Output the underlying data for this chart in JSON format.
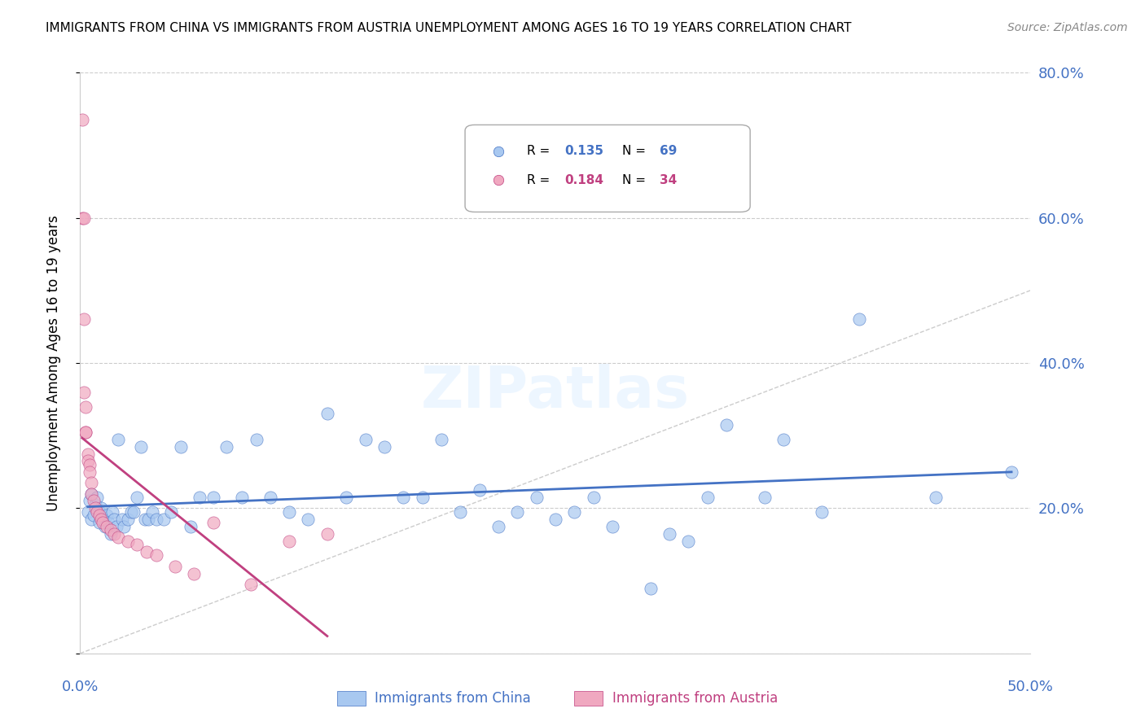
{
  "title": "IMMIGRANTS FROM CHINA VS IMMIGRANTS FROM AUSTRIA UNEMPLOYMENT AMONG AGES 16 TO 19 YEARS CORRELATION CHART",
  "source": "Source: ZipAtlas.com",
  "xlabel_bottom": "Immigrants from China",
  "xlabel_bottom2": "Immigrants from Austria",
  "ylabel": "Unemployment Among Ages 16 to 19 years",
  "xlim": [
    0.0,
    0.5
  ],
  "ylim": [
    0.0,
    0.8
  ],
  "xticks": [
    0.0,
    0.1,
    0.2,
    0.3,
    0.4,
    0.5
  ],
  "yticks": [
    0.0,
    0.2,
    0.4,
    0.6,
    0.8
  ],
  "right_ytick_labels": [
    "80.0%",
    "60.0%",
    "40.0%",
    "20.0%"
  ],
  "right_ytick_values": [
    0.8,
    0.6,
    0.4,
    0.2
  ],
  "legend_R_china": "0.135",
  "legend_N_china": "69",
  "legend_R_austria": "0.184",
  "legend_N_austria": "34",
  "china_color": "#a8c8f0",
  "austria_color": "#f0a8c0",
  "china_line_color": "#4472c4",
  "austria_line_color": "#c04080",
  "watermark": "ZIPatlas",
  "china_x": [
    0.004,
    0.005,
    0.006,
    0.006,
    0.007,
    0.008,
    0.009,
    0.01,
    0.01,
    0.011,
    0.012,
    0.013,
    0.014,
    0.015,
    0.016,
    0.017,
    0.018,
    0.019,
    0.02,
    0.022,
    0.023,
    0.025,
    0.027,
    0.028,
    0.03,
    0.032,
    0.034,
    0.036,
    0.038,
    0.04,
    0.044,
    0.048,
    0.053,
    0.058,
    0.063,
    0.07,
    0.077,
    0.085,
    0.093,
    0.1,
    0.11,
    0.12,
    0.13,
    0.14,
    0.15,
    0.16,
    0.17,
    0.18,
    0.19,
    0.2,
    0.21,
    0.22,
    0.23,
    0.24,
    0.25,
    0.26,
    0.27,
    0.28,
    0.3,
    0.31,
    0.32,
    0.33,
    0.34,
    0.36,
    0.37,
    0.39,
    0.41,
    0.45,
    0.49
  ],
  "china_y": [
    0.195,
    0.21,
    0.185,
    0.22,
    0.19,
    0.205,
    0.215,
    0.18,
    0.195,
    0.2,
    0.185,
    0.175,
    0.19,
    0.18,
    0.165,
    0.195,
    0.185,
    0.175,
    0.295,
    0.185,
    0.175,
    0.185,
    0.195,
    0.195,
    0.215,
    0.285,
    0.185,
    0.185,
    0.195,
    0.185,
    0.185,
    0.195,
    0.285,
    0.175,
    0.215,
    0.215,
    0.285,
    0.215,
    0.295,
    0.215,
    0.195,
    0.185,
    0.33,
    0.215,
    0.295,
    0.285,
    0.215,
    0.215,
    0.295,
    0.195,
    0.225,
    0.175,
    0.195,
    0.215,
    0.185,
    0.195,
    0.215,
    0.175,
    0.09,
    0.165,
    0.155,
    0.215,
    0.315,
    0.215,
    0.295,
    0.195,
    0.46,
    0.215,
    0.25
  ],
  "austria_x": [
    0.001,
    0.001,
    0.002,
    0.002,
    0.002,
    0.003,
    0.003,
    0.003,
    0.004,
    0.004,
    0.005,
    0.005,
    0.006,
    0.006,
    0.007,
    0.008,
    0.009,
    0.01,
    0.011,
    0.012,
    0.014,
    0.016,
    0.018,
    0.02,
    0.025,
    0.03,
    0.035,
    0.04,
    0.05,
    0.06,
    0.07,
    0.09,
    0.11,
    0.13
  ],
  "austria_y": [
    0.735,
    0.6,
    0.6,
    0.46,
    0.36,
    0.34,
    0.305,
    0.305,
    0.275,
    0.265,
    0.26,
    0.25,
    0.235,
    0.22,
    0.21,
    0.2,
    0.195,
    0.19,
    0.185,
    0.18,
    0.175,
    0.17,
    0.165,
    0.16,
    0.155,
    0.15,
    0.14,
    0.135,
    0.12,
    0.11,
    0.18,
    0.095,
    0.155,
    0.165
  ]
}
